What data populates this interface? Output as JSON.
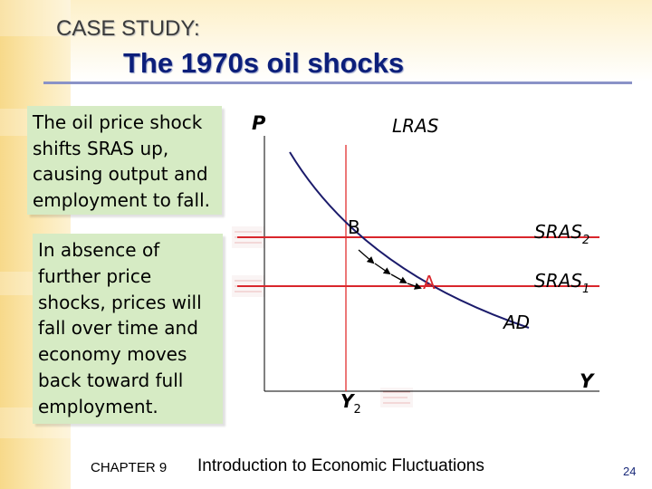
{
  "header": {
    "case_label": "CASE STUDY:",
    "title": "The 1970s oil shocks"
  },
  "text_boxes": {
    "box1_lines": [
      "The oil price shock",
      "shifts SRAS up,",
      "causing output and",
      "employment to fall."
    ],
    "box2_lines": [
      "In absence of",
      "further price",
      "shocks, prices will",
      "fall over time and",
      "economy moves",
      "back toward full",
      "employment."
    ]
  },
  "diagram": {
    "y_axis_label": "P",
    "x_axis_label": "Y",
    "lras_label": "LRAS",
    "lras_output_label": "Y",
    "lras_output_subscript": "2",
    "sras2_label": "SRAS",
    "sras2_subscript": "2",
    "sras1_label": "SRAS",
    "sras1_subscript": "1",
    "ad_label": "AD",
    "point_b": "B",
    "point_a": "A",
    "colors": {
      "sras": "#d9262c",
      "lras": "#e23030",
      "ad": "#1b1b6b",
      "axis": "#000000"
    }
  },
  "footer": {
    "chapter": "CHAPTER 9",
    "course": "Introduction to Economic Fluctuations",
    "page_number": "24"
  }
}
